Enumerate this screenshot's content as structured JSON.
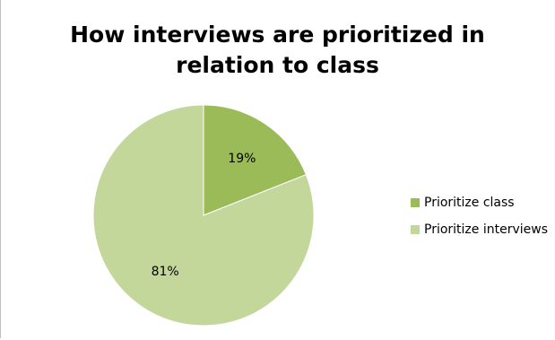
{
  "chart_data": {
    "type": "pie",
    "title_lines": [
      "How interviews are prioritized in",
      "relation to class"
    ],
    "slices": [
      {
        "label": "Prioritize class",
        "value": 19,
        "value_label": "19%",
        "color": "#9bbb59"
      },
      {
        "label": "Prioritize interviews",
        "value": 81,
        "value_label": "81%",
        "color": "#c4d79b"
      }
    ],
    "legend_position": "right"
  }
}
